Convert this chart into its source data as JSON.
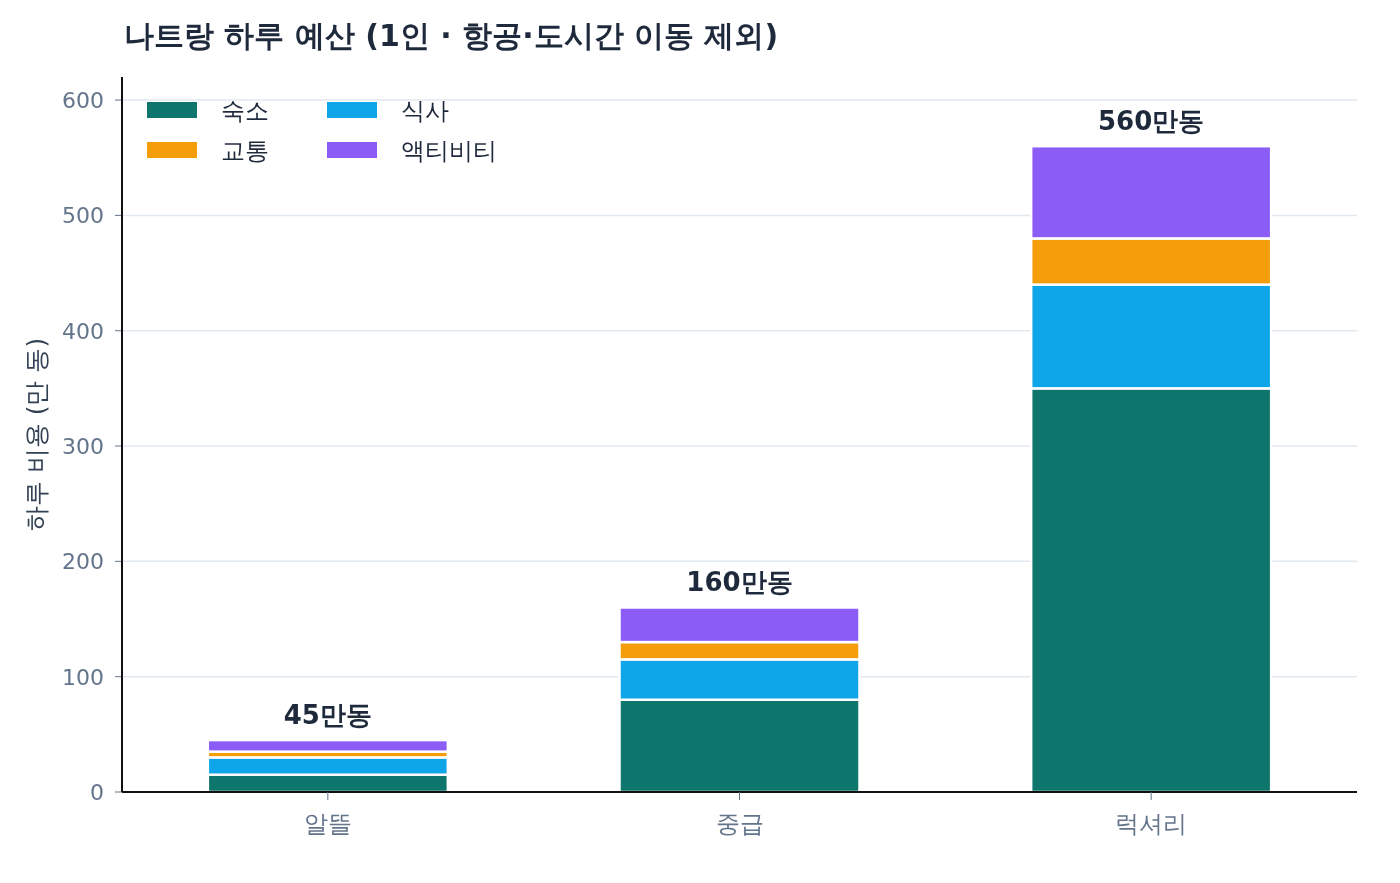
{
  "chart_data": {
    "type": "bar",
    "stacked": true,
    "title": "나트랑 하루 예산 (1인 · 항공·도시간 이동 제외)",
    "ylabel": "하루 비용 (만 동)",
    "categories": [
      "알뜰",
      "중급",
      "럭셔리"
    ],
    "series": [
      {
        "name": "숙소",
        "color": "#0f766e",
        "values": [
          15,
          80,
          350
        ]
      },
      {
        "name": "식사",
        "color": "#0ea5e9",
        "values": [
          15,
          35,
          90
        ]
      },
      {
        "name": "교통",
        "color": "#f59e0b",
        "values": [
          5,
          15,
          40
        ]
      },
      {
        "name": "액티비티",
        "color": "#8b5cf6",
        "values": [
          10,
          30,
          80
        ]
      }
    ],
    "totals": [
      "45만동",
      "160만동",
      "560만동"
    ],
    "ylim": [
      0,
      620
    ],
    "yticks": [
      0,
      100,
      200,
      300,
      400,
      500,
      600
    ],
    "grid": "y",
    "legend": "top left"
  }
}
